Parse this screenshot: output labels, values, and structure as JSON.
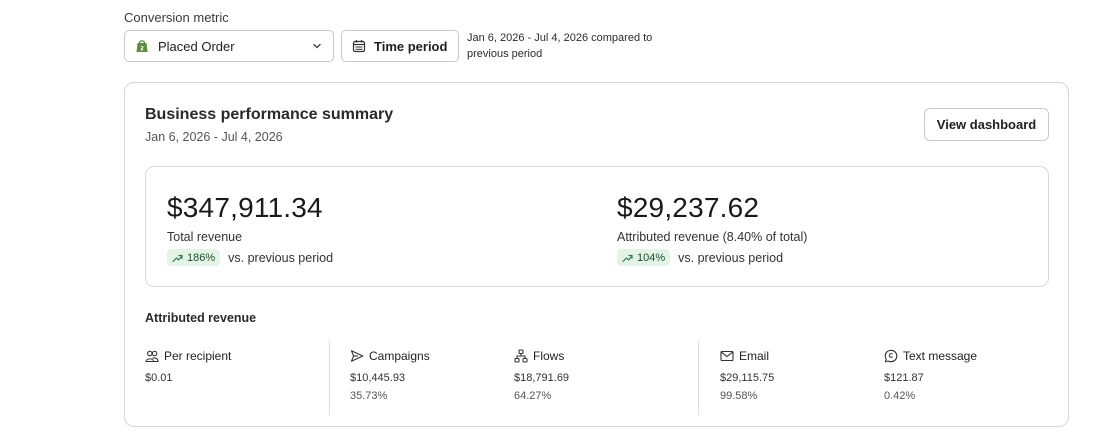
{
  "conversion": {
    "label": "Conversion metric",
    "selected": "Placed Order",
    "time_period_button": "Time period",
    "period_text": "Jan 6, 2026 - Jul 4, 2026 compared to previous period"
  },
  "summary": {
    "title": "Business performance summary",
    "subtitle": "Jan 6, 2026 - Jul 4, 2026",
    "view_dashboard": "View dashboard",
    "total": {
      "amount": "$347,911.34",
      "label": "Total revenue",
      "change": "186%",
      "change_suffix": "vs. previous period"
    },
    "attributed": {
      "amount": "$29,237.62",
      "label": "Attributed revenue (8.40% of total)",
      "change": "104%",
      "change_suffix": "vs. previous period"
    }
  },
  "attributed_revenue": {
    "title": "Attributed revenue",
    "items": [
      {
        "label": "Per recipient",
        "icon": "people-icon",
        "value": "$0.01",
        "pct": ""
      },
      {
        "label": "Campaigns",
        "icon": "send-icon",
        "value": "$10,445.93",
        "pct": "35.73%"
      },
      {
        "label": "Flows",
        "icon": "flow-icon",
        "value": "$18,791.69",
        "pct": "64.27%"
      },
      {
        "label": "Email",
        "icon": "mail-icon",
        "value": "$29,115.75",
        "pct": "99.58%"
      },
      {
        "label": "Text message",
        "icon": "message-icon",
        "value": "$121.87",
        "pct": "0.42%"
      }
    ]
  },
  "colors": {
    "badge_bg": "#e3f4e6",
    "badge_arrow": "#2e7d46",
    "shopify_green": "#5e8e3e"
  }
}
